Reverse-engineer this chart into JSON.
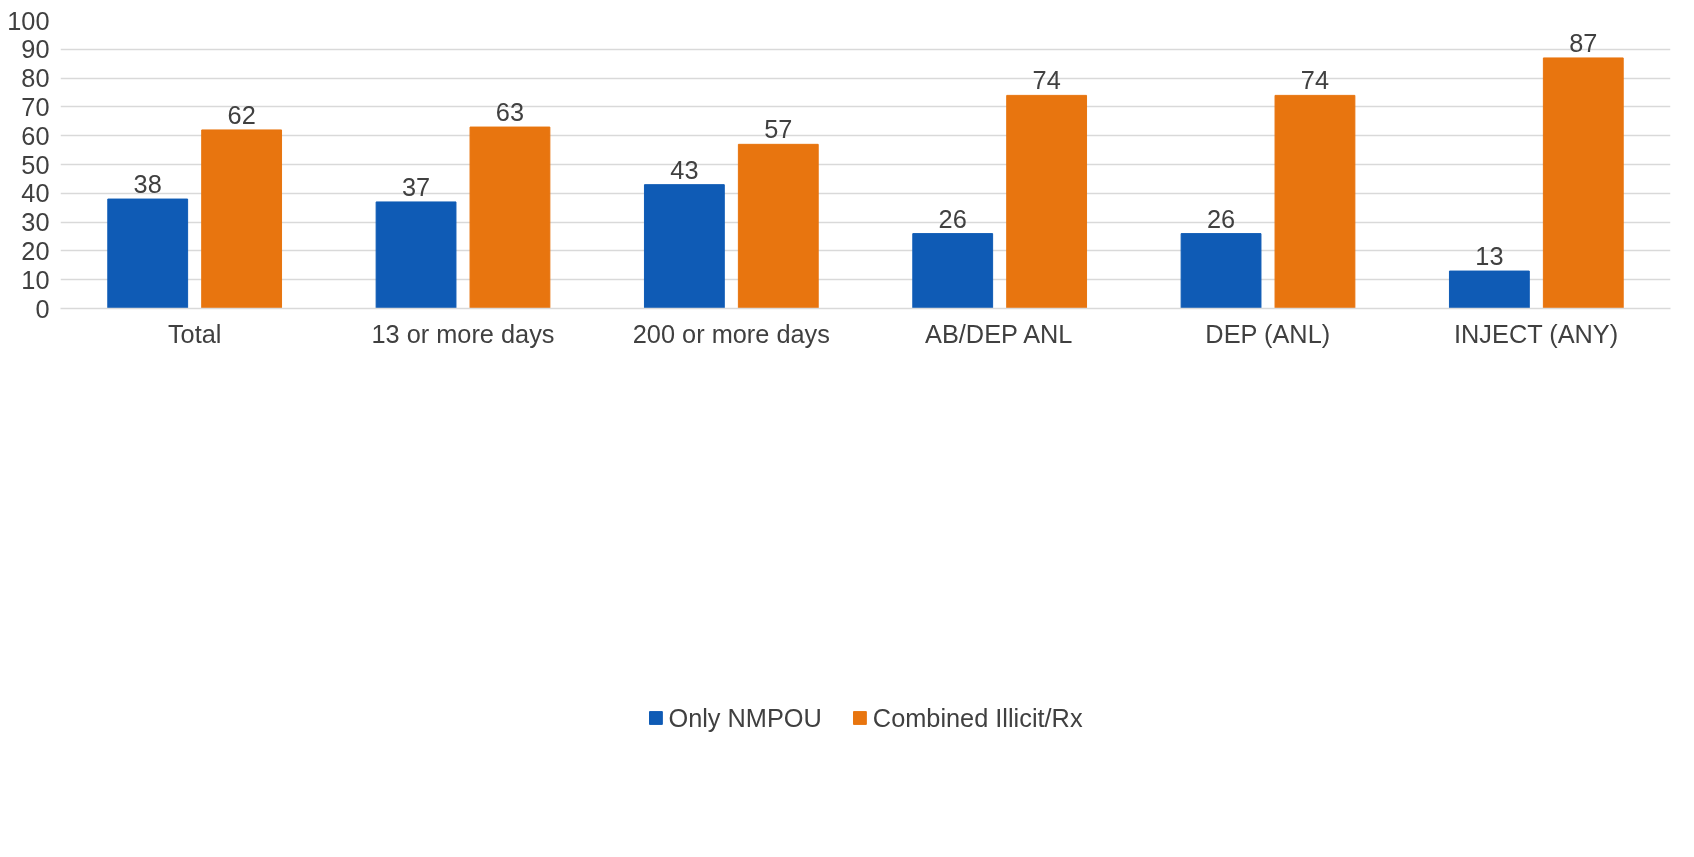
{
  "chart_data": {
    "type": "bar",
    "categories": [
      "Total",
      "13 or more days",
      "200 or more days",
      "AB/DEP ANL",
      "DEP (ANL)",
      "INJECT (ANY)"
    ],
    "series": [
      {
        "name": "Only NMPOU",
        "color": "#0f5bb5",
        "values": [
          38,
          37,
          43,
          26,
          26,
          13
        ]
      },
      {
        "name": "Combined Illicit/Rx",
        "color": "#e8750f",
        "values": [
          62,
          63,
          57,
          74,
          74,
          87
        ]
      }
    ],
    "ylim": [
      0,
      100
    ],
    "yticks": [
      0,
      10,
      20,
      30,
      40,
      50,
      60,
      70,
      80,
      90,
      100
    ],
    "grid": "y",
    "legend": "bottom",
    "data_labels": true
  }
}
